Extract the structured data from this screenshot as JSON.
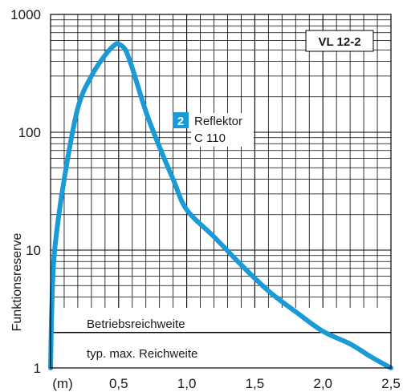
{
  "chart_data": {
    "type": "line",
    "title": "",
    "ylabel": "Funktionsreserve",
    "xlabel": "",
    "x_unit_label": "(m)",
    "y_scale": "log",
    "xlim": [
      0,
      2.5
    ],
    "ylim": [
      1,
      1000
    ],
    "x_ticks": [
      "0,5",
      "1,0",
      "1,5",
      "2,0",
      "2,5"
    ],
    "x_tick_values": [
      0.5,
      1.0,
      1.5,
      2.0,
      2.5
    ],
    "y_ticks": [
      "1",
      "10",
      "100",
      "1000"
    ],
    "y_tick_values": [
      1,
      10,
      100,
      1000
    ],
    "grid": true,
    "model_label": "VL 12-2",
    "series": [
      {
        "name": "Reflektor C 110",
        "number": "2",
        "label_line1": "Reflektor",
        "label_line2": "C 110",
        "color": "#1a9ad6",
        "points": [
          [
            0.0,
            1.0
          ],
          [
            0.01,
            3.5
          ],
          [
            0.03,
            10
          ],
          [
            0.1,
            40
          ],
          [
            0.2,
            160
          ],
          [
            0.3,
            300
          ],
          [
            0.4,
            450
          ],
          [
            0.47,
            550
          ],
          [
            0.5,
            560
          ],
          [
            0.55,
            500
          ],
          [
            0.6,
            350
          ],
          [
            0.7,
            150
          ],
          [
            0.8,
            75
          ],
          [
            0.9,
            40
          ],
          [
            1.0,
            22
          ],
          [
            1.2,
            13
          ],
          [
            1.4,
            7.5
          ],
          [
            1.6,
            4.5
          ],
          [
            1.8,
            3.0
          ],
          [
            2.0,
            2.05
          ],
          [
            2.2,
            1.6
          ],
          [
            2.35,
            1.25
          ],
          [
            2.5,
            1.0
          ]
        ]
      }
    ],
    "reference_lines": [
      {
        "y": 2,
        "label_above": "Betriebsreichweite",
        "label_below": "typ. max. Reichweite"
      }
    ]
  }
}
